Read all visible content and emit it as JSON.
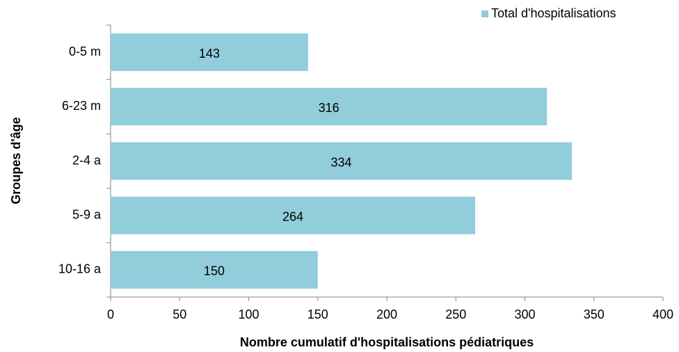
{
  "chart_data": {
    "type": "barh",
    "categories": [
      "0-5 m",
      "6-23 m",
      "2-4 a",
      "5-9 a",
      "10-16 a"
    ],
    "series": [
      {
        "name": "Total d'hospitalisations",
        "color": "#92cddc",
        "values": [
          143,
          316,
          334,
          264,
          150
        ]
      }
    ],
    "xlabel": "Nombre cumulatif d'hospitalisations pédiatriques",
    "ylabel": "Groupes d'âge",
    "xlim": [
      0,
      400
    ],
    "xticks": [
      0,
      50,
      100,
      150,
      200,
      250,
      300,
      350,
      400
    ],
    "grid": false,
    "legend": "top-right",
    "show_values": true
  }
}
